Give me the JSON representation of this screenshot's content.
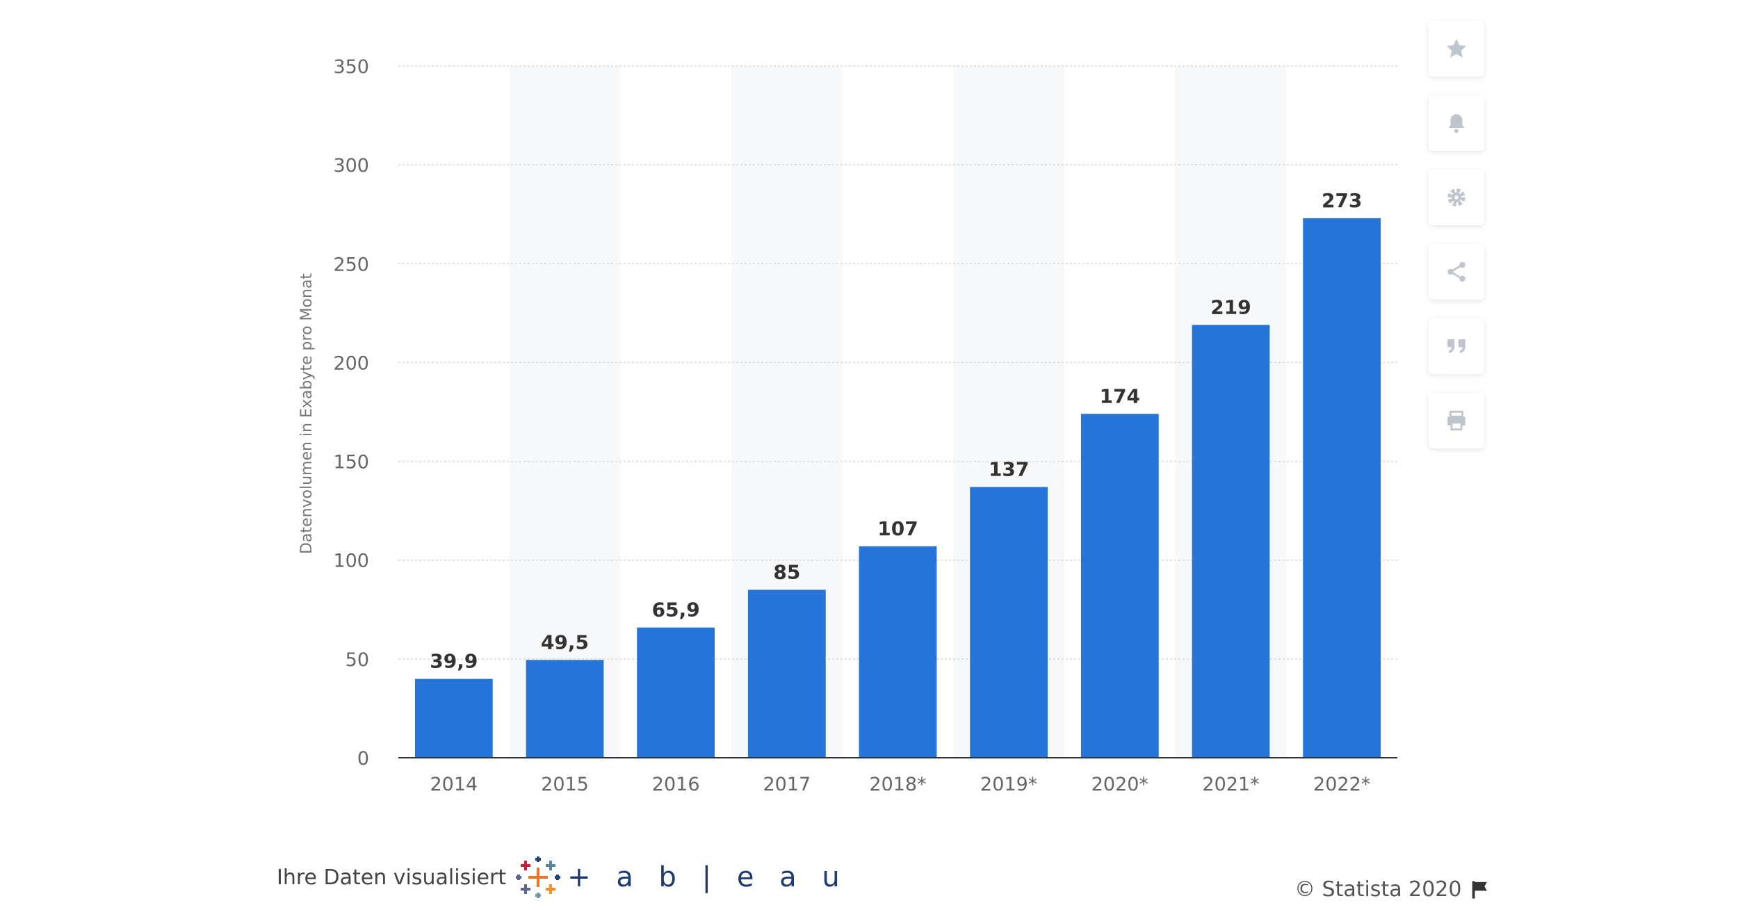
{
  "chart_data": {
    "type": "bar",
    "categories": [
      "2014",
      "2015",
      "2016",
      "2017",
      "2018*",
      "2019*",
      "2020*",
      "2021*",
      "2022*"
    ],
    "values": [
      39.9,
      49.5,
      65.9,
      85,
      107,
      137,
      174,
      219,
      273
    ],
    "value_labels": [
      "39,9",
      "49,5",
      "65,9",
      "85",
      "107",
      "137",
      "174",
      "219",
      "273"
    ],
    "ylabel": "Datenvolumen in Exabyte pro Monat",
    "ylim": [
      0,
      350
    ],
    "yticks": [
      0,
      50,
      100,
      150,
      200,
      250,
      300,
      350
    ],
    "grid": true,
    "bar_color": "#2774d9",
    "alternate_column_shading": true
  },
  "toolbar": {
    "icons": [
      "star-icon",
      "bell-icon",
      "gear-icon",
      "share-icon",
      "quote-icon",
      "print-icon"
    ]
  },
  "footer": {
    "visualized_label": "Ihre Daten visualisiert",
    "tableau_word": "+ a b | e a u",
    "copyright": "© Statista 2020"
  }
}
